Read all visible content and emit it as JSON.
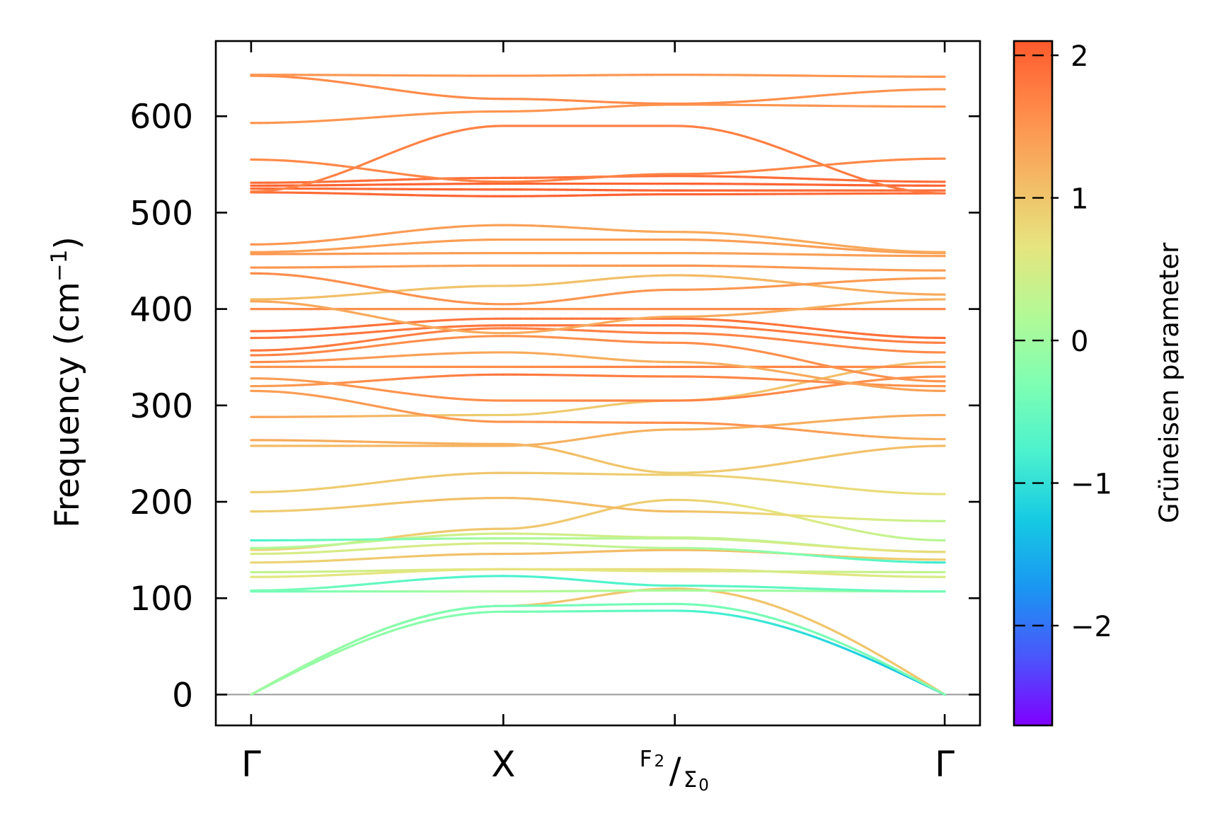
{
  "chart_data": {
    "type": "line",
    "title": "",
    "ylabel": "Frequency (cm",
    "ylabel_sup": "−1",
    "ylabel_close": ")",
    "ylim": [
      -32,
      678
    ],
    "yticks": [
      0,
      100,
      200,
      300,
      400,
      500,
      600
    ],
    "kpath": [
      {
        "pos": 0.0,
        "main": "Γ"
      },
      {
        "pos": 1.0,
        "main": "X"
      },
      {
        "pos": 1.68,
        "top": "F",
        "top_sub": "2",
        "slash": "/",
        "bot": "Σ",
        "bot_sub": "0"
      },
      {
        "pos": 2.75,
        "main": "Γ"
      }
    ],
    "x_range": [
      -0.14,
      2.89
    ],
    "zero_line": 0,
    "colorbar": {
      "label": "Grüneisen parameter",
      "range": [
        -2.7,
        2.1
      ],
      "ticks": [
        "2",
        "1",
        "0",
        "−1",
        "−2"
      ],
      "tick_values": [
        2,
        1,
        0,
        -1,
        -2
      ],
      "colormap": [
        "#7f00ff",
        "#4a56fb",
        "#1a96f2",
        "#16cae3",
        "#4cf2ce",
        "#7ffeb2",
        "#b3f996",
        "#e6e57f",
        "#f4b864",
        "#ff8a4a",
        "#ff5a2c"
      ],
      "colormap_top": 2.1,
      "colormap_bottom": -2.7
    },
    "series": [
      {
        "x": [
          0,
          1,
          1.68,
          2.75
        ],
        "y": [
          0,
          92,
          110,
          0
        ],
        "g": [
          1.3,
          1.0,
          1.0,
          1.0
        ]
      },
      {
        "x": [
          0,
          1,
          1.68,
          2.75
        ],
        "y": [
          0,
          86,
          87,
          0
        ],
        "g": [
          0.0,
          -0.3,
          -0.7,
          -1.4
        ]
      },
      {
        "x": [
          0,
          1,
          1.68,
          2.75
        ],
        "y": [
          0,
          92,
          94,
          0
        ],
        "g": [
          0.0,
          -0.4,
          -0.4,
          -0.3
        ]
      },
      {
        "x": [
          0,
          1,
          1.68,
          2.75
        ],
        "y": [
          107,
          107,
          108,
          107
        ],
        "g": [
          -0.5,
          0.2,
          0.1,
          -0.2
        ]
      },
      {
        "x": [
          0,
          1,
          1.68,
          2.75
        ],
        "y": [
          108,
          123,
          113,
          107
        ],
        "g": [
          -0.3,
          -0.8,
          -0.7,
          -0.4
        ]
      },
      {
        "x": [
          0,
          1,
          1.68,
          2.75
        ],
        "y": [
          122,
          130,
          130,
          122
        ],
        "g": [
          0.6,
          0.7,
          0.8,
          0.5
        ]
      },
      {
        "x": [
          0,
          1,
          1.68,
          2.75
        ],
        "y": [
          127,
          130,
          128,
          127
        ],
        "g": [
          0.3,
          0.7,
          0.6,
          0.3
        ]
      },
      {
        "x": [
          0,
          1,
          1.68,
          2.75
        ],
        "y": [
          137,
          146,
          150,
          140
        ],
        "g": [
          0.8,
          1.1,
          1.1,
          0.9
        ]
      },
      {
        "x": [
          0,
          1,
          1.68,
          2.75
        ],
        "y": [
          146,
          157,
          152,
          137
        ],
        "g": [
          0.5,
          0.5,
          0.2,
          -0.9
        ]
      },
      {
        "x": [
          0,
          1,
          1.68,
          2.75
        ],
        "y": [
          150,
          172,
          202,
          160
        ],
        "g": [
          0.8,
          1.0,
          0.9,
          0.2
        ]
      },
      {
        "x": [
          0,
          1,
          1.68,
          2.75
        ],
        "y": [
          152,
          167,
          163,
          148
        ],
        "g": [
          0.1,
          0.5,
          0.4,
          -0.2
        ]
      },
      {
        "x": [
          0,
          1,
          1.68,
          2.75
        ],
        "y": [
          160,
          162,
          162,
          148
        ],
        "g": [
          -0.8,
          0.1,
          0.3,
          0.8
        ]
      },
      {
        "x": [
          0,
          1,
          1.68,
          2.75
        ],
        "y": [
          210,
          230,
          228,
          208
        ],
        "g": [
          0.9,
          1.0,
          0.9,
          0.7
        ]
      },
      {
        "x": [
          0,
          1,
          1.68,
          2.75
        ],
        "y": [
          190,
          204,
          190,
          180
        ],
        "g": [
          0.9,
          1.1,
          1.1,
          0.3
        ]
      },
      {
        "x": [
          0,
          1,
          1.68,
          2.75
        ],
        "y": [
          258,
          258,
          275,
          290
        ],
        "g": [
          1.1,
          1.2,
          1.2,
          1.3
        ]
      },
      {
        "x": [
          0,
          1,
          1.68,
          2.75
        ],
        "y": [
          264,
          260,
          230,
          258
        ],
        "g": [
          1.3,
          1.2,
          0.9,
          1.1
        ]
      },
      {
        "x": [
          0,
          1,
          1.68,
          2.75
        ],
        "y": [
          288,
          290,
          305,
          345
        ],
        "g": [
          1.4,
          0.9,
          1.0,
          1.1
        ]
      },
      {
        "x": [
          0,
          1,
          1.68,
          2.75
        ],
        "y": [
          315,
          283,
          282,
          265
        ],
        "g": [
          1.4,
          1.5,
          1.6,
          1.2
        ]
      },
      {
        "x": [
          0,
          1,
          1.68,
          2.75
        ],
        "y": [
          320,
          332,
          330,
          320
        ],
        "g": [
          1.4,
          1.8,
          1.7,
          1.5
        ]
      },
      {
        "x": [
          0,
          1,
          1.68,
          2.75
        ],
        "y": [
          328,
          305,
          305,
          330
        ],
        "g": [
          1.4,
          1.6,
          1.7,
          1.5
        ]
      },
      {
        "x": [
          0,
          1,
          1.68,
          2.75
        ],
        "y": [
          340,
          340,
          340,
          340
        ],
        "g": [
          1.5,
          1.6,
          1.7,
          1.6
        ]
      },
      {
        "x": [
          0,
          1,
          1.68,
          2.75
        ],
        "y": [
          345,
          355,
          345,
          315
        ],
        "g": [
          1.6,
          1.3,
          1.2,
          1.4
        ]
      },
      {
        "x": [
          0,
          1,
          1.68,
          2.75
        ],
        "y": [
          352,
          372,
          365,
          325
        ],
        "g": [
          1.7,
          1.5,
          1.6,
          1.5
        ]
      },
      {
        "x": [
          0,
          1,
          1.68,
          2.75
        ],
        "y": [
          357,
          380,
          375,
          355
        ],
        "g": [
          1.8,
          1.7,
          1.7,
          1.6
        ]
      },
      {
        "x": [
          0,
          1,
          1.68,
          2.75
        ],
        "y": [
          370,
          383,
          383,
          365
        ],
        "g": [
          1.8,
          1.8,
          1.8,
          1.7
        ]
      },
      {
        "x": [
          0,
          1,
          1.68,
          2.75
        ],
        "y": [
          377,
          390,
          390,
          370
        ],
        "g": [
          1.9,
          1.8,
          1.8,
          1.9
        ]
      },
      {
        "x": [
          0,
          1,
          1.68,
          2.75
        ],
        "y": [
          400,
          400,
          400,
          400
        ],
        "g": [
          1.6,
          1.5,
          1.6,
          1.6
        ]
      },
      {
        "x": [
          0,
          1,
          1.68,
          2.75
        ],
        "y": [
          408,
          375,
          392,
          410
        ],
        "g": [
          1.3,
          1.3,
          1.3,
          1.2
        ]
      },
      {
        "x": [
          0,
          1,
          1.68,
          2.75
        ],
        "y": [
          410,
          424,
          435,
          415
        ],
        "g": [
          1.1,
          1.0,
          1.1,
          1.3
        ]
      },
      {
        "x": [
          0,
          1,
          1.68,
          2.75
        ],
        "y": [
          437,
          405,
          420,
          432
        ],
        "g": [
          1.6,
          1.5,
          1.5,
          1.4
        ]
      },
      {
        "x": [
          0,
          1,
          1.68,
          2.75
        ],
        "y": [
          443,
          445,
          445,
          440
        ],
        "g": [
          1.5,
          1.4,
          1.5,
          1.4
        ]
      },
      {
        "x": [
          0,
          1,
          1.68,
          2.75
        ],
        "y": [
          457,
          458,
          458,
          455
        ],
        "g": [
          1.5,
          1.4,
          1.4,
          1.4
        ]
      },
      {
        "x": [
          0,
          1,
          1.68,
          2.75
        ],
        "y": [
          459,
          472,
          472,
          458
        ],
        "g": [
          1.4,
          1.4,
          1.4,
          1.4
        ]
      },
      {
        "x": [
          0,
          1,
          1.68,
          2.75
        ],
        "y": [
          467,
          487,
          480,
          459
        ],
        "g": [
          1.5,
          1.4,
          1.3,
          1.3
        ]
      },
      {
        "x": [
          0,
          1,
          1.68,
          2.75
        ],
        "y": [
          521,
          517,
          519,
          520
        ],
        "g": [
          1.9,
          2.0,
          2.0,
          1.9
        ]
      },
      {
        "x": [
          0,
          1,
          1.68,
          2.75
        ],
        "y": [
          525,
          524,
          523,
          523
        ],
        "g": [
          1.9,
          2.0,
          2.0,
          1.9
        ]
      },
      {
        "x": [
          0,
          1,
          1.68,
          2.75
        ],
        "y": [
          528,
          530,
          530,
          528
        ],
        "g": [
          2.0,
          2.0,
          2.0,
          2.0
        ]
      },
      {
        "x": [
          0,
          1,
          1.68,
          2.75
        ],
        "y": [
          531,
          536,
          538,
          532
        ],
        "g": [
          1.9,
          1.9,
          1.9,
          1.9
        ]
      },
      {
        "x": [
          0,
          1,
          1.68,
          2.75
        ],
        "y": [
          522,
          590,
          590,
          520
        ],
        "g": [
          1.7,
          1.7,
          1.7,
          1.8
        ]
      },
      {
        "x": [
          0,
          1,
          1.68,
          2.75
        ],
        "y": [
          555,
          532,
          540,
          556
        ],
        "g": [
          1.6,
          1.7,
          1.7,
          1.6
        ]
      },
      {
        "x": [
          0,
          1,
          1.68,
          2.75
        ],
        "y": [
          593,
          605,
          612,
          610
        ],
        "g": [
          1.5,
          1.5,
          1.5,
          1.5
        ]
      },
      {
        "x": [
          0,
          1,
          1.68,
          2.75
        ],
        "y": [
          642,
          618,
          613,
          628
        ],
        "g": [
          1.6,
          1.6,
          1.6,
          1.5
        ]
      },
      {
        "x": [
          0,
          1,
          1.68,
          2.75
        ],
        "y": [
          643,
          642,
          643,
          641
        ],
        "g": [
          1.5,
          1.5,
          1.5,
          1.5
        ]
      }
    ]
  }
}
